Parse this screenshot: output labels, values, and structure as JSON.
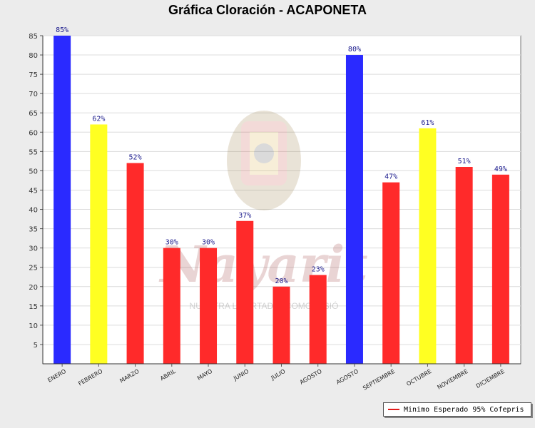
{
  "chart_data": {
    "type": "bar",
    "title": "Gráfica Cloración - ACAPONETA",
    "categories": [
      "ENERO",
      "FEBRERO",
      "MARZO",
      "ABRIL",
      "MAYO",
      "JUNIO",
      "JULIO",
      "AGOSTO",
      "AGOSTO",
      "SEPTIEMBRE",
      "OCTUBRE",
      "NOVIEMBRE",
      "DICIEMBRE"
    ],
    "values": [
      85,
      62,
      52,
      30,
      30,
      37,
      20,
      23,
      80,
      47,
      61,
      51,
      49
    ],
    "data_labels": [
      "85%",
      "62%",
      "52%",
      "30%",
      "30%",
      "37%",
      "20%",
      "23%",
      "80%",
      "47%",
      "61%",
      "51%",
      "49%"
    ],
    "colors": [
      "#2a2aff",
      "#ffff22",
      "#ff2a2a",
      "#ff2a2a",
      "#ff2a2a",
      "#ff2a2a",
      "#ff2a2a",
      "#ff2a2a",
      "#2a2aff",
      "#ff2a2a",
      "#ffff22",
      "#ff2a2a",
      "#ff2a2a"
    ],
    "ylim": [
      0,
      85
    ],
    "yticks": [
      5,
      10,
      15,
      20,
      25,
      30,
      35,
      40,
      45,
      50,
      55,
      60,
      65,
      70,
      75,
      80,
      85
    ],
    "grid": true,
    "legend": {
      "position": "bottom-right",
      "entries": [
        {
          "label": "Minimo Esperado 95% Cofepris",
          "color": "#e21a1a"
        }
      ]
    },
    "watermark_text": "Nayarit",
    "watermark_subtext": "NUESTRA LIBERTAD ... COMO MISIÓ"
  }
}
